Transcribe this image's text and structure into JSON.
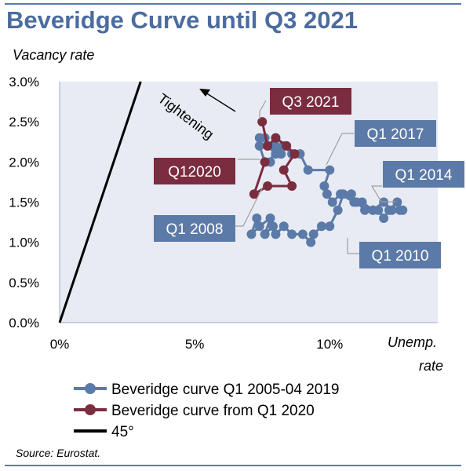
{
  "title": "Beveridge Curve until Q3 2021",
  "source": "Source: Eurostat.",
  "colors": {
    "blue": "#5b7aa8",
    "red": "#7b2c3f",
    "line45": "#000000",
    "plot_bg": "#e8ebf3",
    "title": "#4b6c9f"
  },
  "chart_data": {
    "type": "line",
    "title": "Beveridge Curve until Q3 2021",
    "xlabel": "Unemp. rate",
    "ylabel": "Vacancy rate",
    "xlim": [
      0,
      14
    ],
    "ylim": [
      0,
      3
    ],
    "x_ticks": [
      "0%",
      "5%",
      "10%"
    ],
    "y_ticks": [
      "0.0%",
      "0.5%",
      "1.0%",
      "1.5%",
      "2.0%",
      "2.5%",
      "3.0%"
    ],
    "grid": false,
    "legend_position": "bottom",
    "series": [
      {
        "name": "Beveridge curve Q1 2005-04 2019",
        "color": "#5b7aa8",
        "points": [
          [
            7.3,
            1.3
          ],
          [
            7.1,
            1.1
          ],
          [
            7.4,
            1.2
          ],
          [
            7.8,
            1.3
          ],
          [
            7.6,
            1.1
          ],
          [
            7.9,
            1.2
          ],
          [
            8.0,
            1.1
          ],
          [
            8.3,
            1.2
          ],
          [
            8.6,
            1.1
          ],
          [
            9.0,
            1.1
          ],
          [
            9.3,
            1.0
          ],
          [
            9.4,
            1.1
          ],
          [
            9.7,
            1.2
          ],
          [
            10.0,
            1.2
          ],
          [
            10.3,
            1.4
          ],
          [
            10.5,
            1.6
          ],
          [
            10.8,
            1.6
          ],
          [
            11.0,
            1.5
          ],
          [
            11.3,
            1.4
          ],
          [
            11.6,
            1.4
          ],
          [
            11.8,
            1.4
          ],
          [
            12.0,
            1.3
          ],
          [
            12.2,
            1.4
          ],
          [
            12.5,
            1.5
          ],
          [
            12.7,
            1.4
          ],
          [
            12.6,
            1.4
          ],
          [
            12.3,
            1.4
          ],
          [
            12.0,
            1.5
          ],
          [
            11.6,
            1.4
          ],
          [
            11.2,
            1.5
          ],
          [
            10.9,
            1.5
          ],
          [
            10.4,
            1.6
          ],
          [
            10.1,
            1.5
          ],
          [
            9.9,
            1.6
          ],
          [
            9.8,
            1.7
          ],
          [
            10.0,
            1.9
          ],
          [
            9.2,
            1.9
          ],
          [
            8.9,
            2.1
          ],
          [
            8.6,
            2.1
          ],
          [
            8.3,
            2.2
          ],
          [
            8.0,
            2.1
          ],
          [
            7.7,
            2.2
          ],
          [
            7.6,
            2.3
          ],
          [
            7.4,
            2.3
          ],
          [
            7.4,
            2.2
          ],
          [
            7.6,
            2.0
          ],
          [
            7.8,
            2.0
          ],
          [
            8.0,
            2.2
          ],
          [
            8.2,
            2.1
          ]
        ]
      },
      {
        "name": "Beveridge curve from Q1 2020",
        "color": "#7b2c3f",
        "points": [
          [
            7.6,
            2.0
          ],
          [
            7.2,
            1.6
          ],
          [
            7.7,
            1.7
          ],
          [
            8.6,
            1.7
          ],
          [
            8.3,
            1.9
          ],
          [
            8.7,
            2.1
          ],
          [
            8.4,
            2.2
          ],
          [
            8.0,
            2.3
          ],
          [
            7.7,
            2.2
          ],
          [
            7.5,
            2.5
          ]
        ]
      },
      {
        "name": "45°",
        "color": "#000000",
        "points": [
          [
            0,
            0
          ],
          [
            3.0,
            3.0
          ]
        ]
      }
    ],
    "annotations": {
      "q3_2021": "Q3 2021",
      "q1_2020": "Q12020",
      "q1_2017": "Q1 2017",
      "q1_2014": "Q1 2014",
      "q1_2008": "Q1 2008",
      "q1_2010": "Q1 2010",
      "tightening": "Tightening"
    }
  },
  "axes": {
    "ylabel": "Vacancy rate",
    "xlabel_line1": "Unemp.",
    "xlabel_line2": "rate"
  }
}
